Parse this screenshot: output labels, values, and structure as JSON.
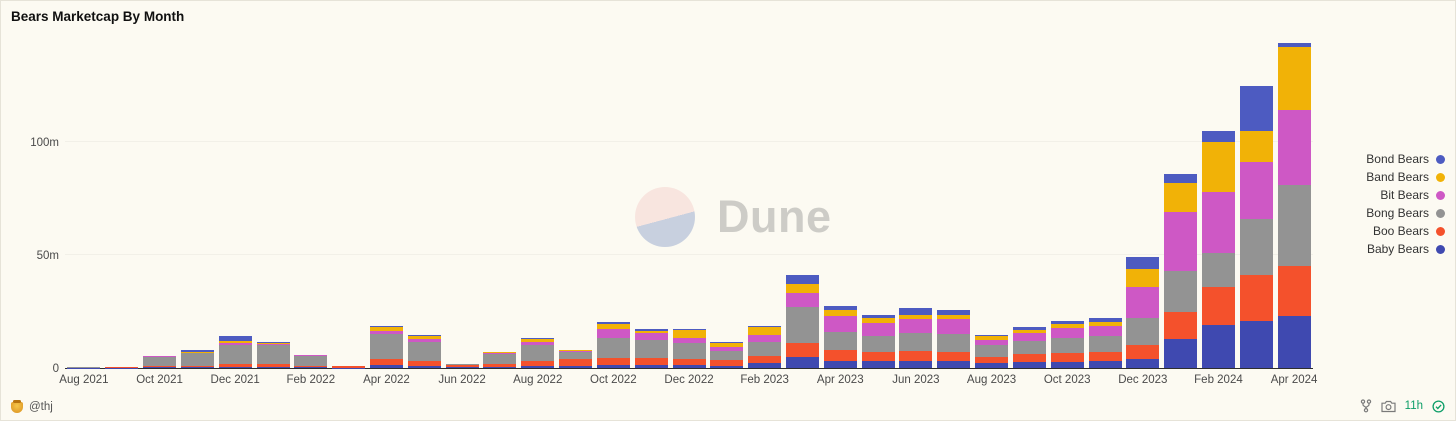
{
  "title": "Bears Marketcap By Month",
  "watermark": {
    "brand": "Dune"
  },
  "footer": {
    "author": "@thj",
    "refreshed": "11h"
  },
  "chart_data": {
    "type": "bar",
    "stacked": true,
    "title": "Bears Marketcap By Month",
    "xlabel": "",
    "ylabel": "",
    "ylim": [
      0,
      150
    ],
    "y_ticks": [
      {
        "value": 0,
        "label": "0"
      },
      {
        "value": 50,
        "label": "50m"
      },
      {
        "value": 100,
        "label": "100m"
      }
    ],
    "tick_every": 2,
    "grid": "faint-horizontal",
    "legend_position": "right",
    "categories": [
      "Aug 2021",
      "Sep 2021",
      "Oct 2021",
      "Nov 2021",
      "Dec 2021",
      "Jan 2022",
      "Feb 2022",
      "Mar 2022",
      "Apr 2022",
      "May 2022",
      "Jun 2022",
      "Jul 2022",
      "Aug 2022",
      "Sep 2022",
      "Oct 2022",
      "Nov 2022",
      "Dec 2022",
      "Jan 2023",
      "Feb 2023",
      "Mar 2023",
      "Apr 2023",
      "May 2023",
      "Jun 2023",
      "Jul 2023",
      "Aug 2023",
      "Sep 2023",
      "Oct 2023",
      "Nov 2023",
      "Dec 2023",
      "Jan 2024",
      "Feb 2024",
      "Mar 2024",
      "Apr 2024"
    ],
    "series": [
      {
        "name": "Baby Bears",
        "color": "#3f49b0",
        "values": [
          0.1,
          0.2,
          0.4,
          0.5,
          0.6,
          0.5,
          0.3,
          0.2,
          1.5,
          1.0,
          0.3,
          0.5,
          1.0,
          1.0,
          1.5,
          1.5,
          1.5,
          1.0,
          2.0,
          5.0,
          3.0,
          3.0,
          3.0,
          3.0,
          2.0,
          2.5,
          2.5,
          3.0,
          4.0,
          13,
          19,
          21,
          23
        ]
      },
      {
        "name": "Boo Bears",
        "color": "#f4512c",
        "values": [
          0.1,
          0.1,
          0.4,
          0.5,
          1.0,
          1.5,
          0.7,
          0.5,
          2.5,
          2.0,
          1.2,
          1.5,
          2.0,
          3.0,
          3.0,
          3.0,
          2.5,
          2.5,
          3.5,
          6.0,
          5.0,
          4.0,
          4.5,
          4.0,
          3.0,
          3.5,
          4.0,
          4.0,
          6.0,
          12,
          17,
          20,
          22
        ]
      },
      {
        "name": "Bong Bears",
        "color": "#939393",
        "values": [
          0.1,
          0.2,
          4.2,
          5.5,
          8.5,
          8.0,
          4.5,
          0.2,
          11,
          8.5,
          0.3,
          4.0,
          7.0,
          3.0,
          9.0,
          8.0,
          7.0,
          4.0,
          6.0,
          16,
          8.0,
          7.0,
          8.0,
          8.0,
          5.0,
          6.0,
          7.0,
          7.0,
          12,
          18,
          15,
          25,
          36
        ]
      },
      {
        "name": "Bit Bears",
        "color": "#ce58c5",
        "values": [
          0,
          0,
          0.2,
          0.3,
          1.0,
          0.5,
          0.2,
          0.1,
          1.5,
          1.5,
          0.2,
          0.5,
          1.5,
          0.5,
          4.0,
          3.0,
          2.5,
          2.0,
          3.0,
          6.0,
          7.0,
          6.0,
          6.0,
          6.5,
          2.5,
          3.5,
          4.0,
          4.5,
          14,
          26,
          27,
          25,
          33
        ]
      },
      {
        "name": "Band Bears",
        "color": "#f1b207",
        "values": [
          0,
          0,
          0.1,
          0.2,
          1.0,
          0.5,
          0.2,
          0,
          1.5,
          1.0,
          0,
          0.5,
          1.5,
          0.5,
          2.0,
          1.0,
          3.5,
          1.5,
          3.5,
          4.0,
          2.5,
          2.0,
          2.0,
          2.0,
          1.5,
          1.5,
          2.0,
          2.0,
          8.0,
          13,
          22,
          14,
          28
        ]
      },
      {
        "name": "Bond Bears",
        "color": "#4d5bc1",
        "values": [
          0,
          0,
          0.1,
          1.0,
          2.0,
          0.5,
          0.1,
          0,
          0.5,
          0.5,
          0,
          0,
          0.5,
          0,
          1.0,
          1.0,
          0.5,
          0.5,
          0.5,
          4.0,
          2.0,
          1.5,
          3.0,
          2.0,
          0.5,
          1.0,
          1.5,
          1.5,
          5.0,
          4.0,
          5.0,
          20,
          2.0
        ]
      }
    ],
    "legend_order": [
      "Bond Bears",
      "Band Bears",
      "Bit Bears",
      "Bong Bears",
      "Boo Bears",
      "Baby Bears"
    ]
  }
}
